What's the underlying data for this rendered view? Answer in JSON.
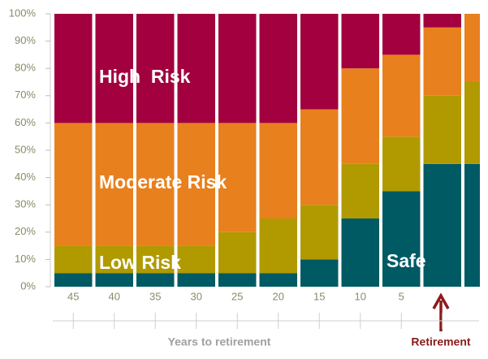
{
  "chart_data": {
    "type": "stacked_bar",
    "categories": [
      "45",
      "40",
      "35",
      "30",
      "25",
      "20",
      "15",
      "10",
      "5",
      null,
      null
    ],
    "series": [
      {
        "name": "Safe",
        "color": "#005a64",
        "values": [
          5,
          5,
          5,
          5,
          5,
          5,
          10,
          25,
          35,
          45,
          45
        ]
      },
      {
        "name": "Low Risk",
        "color": "#b09a00",
        "values": [
          10,
          10,
          10,
          10,
          15,
          20,
          20,
          20,
          20,
          25,
          30
        ]
      },
      {
        "name": "Moderate Risk",
        "color": "#e8801e",
        "values": [
          45,
          45,
          45,
          45,
          40,
          35,
          35,
          35,
          30,
          25,
          25
        ]
      },
      {
        "name": "High  Risk",
        "color": "#a2003e",
        "values": [
          40,
          40,
          40,
          40,
          40,
          40,
          35,
          20,
          15,
          5,
          0
        ]
      }
    ],
    "ylim": [
      0,
      100
    ],
    "yticks": [
      {
        "value": 0,
        "label": "0%"
      },
      {
        "value": 10,
        "label": "10%"
      },
      {
        "value": 20,
        "label": "20%"
      },
      {
        "value": 30,
        "label": "30%"
      },
      {
        "value": 40,
        "label": "40%"
      },
      {
        "value": 50,
        "label": "50%"
      },
      {
        "value": 60,
        "label": "60%"
      },
      {
        "value": 70,
        "label": "70%"
      },
      {
        "value": 80,
        "label": "80%"
      },
      {
        "value": 90,
        "label": "90%"
      },
      {
        "value": 100,
        "label": "100%"
      }
    ],
    "grid": false,
    "x_label": "Years to retirement",
    "annotation": "Retirement"
  }
}
